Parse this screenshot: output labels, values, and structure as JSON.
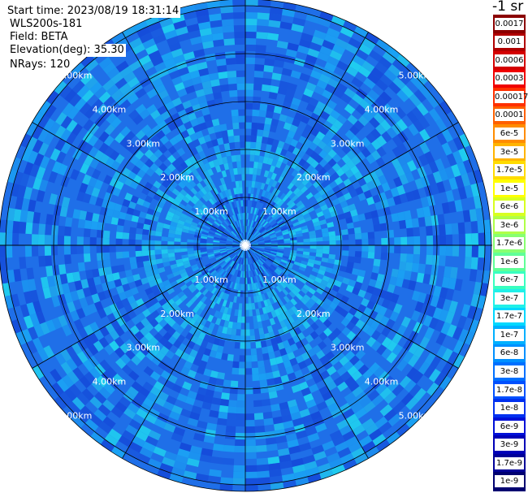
{
  "header": {
    "start_time": "Start time: 2023/08/19 18:31:14",
    "instrument": "WLS200s-181",
    "field": "Field: BETA",
    "elevation": "Elevation(deg): 35.30",
    "nrays": "NRays: 120"
  },
  "range_ring_labels": [
    "1.00km",
    "2.00km",
    "3.00km",
    "4.00km",
    "5.00km"
  ],
  "colorbar": {
    "unit": "-1 sr",
    "levels": [
      {
        "label": "0.0017",
        "color": "#8b0000"
      },
      {
        "label": "0.001",
        "color": "#b00000"
      },
      {
        "label": "0.0006",
        "color": "#d40000"
      },
      {
        "label": "0.0003",
        "color": "#f00000"
      },
      {
        "label": "0.00017",
        "color": "#ff3000"
      },
      {
        "label": "0.0001",
        "color": "#ff6000"
      },
      {
        "label": "6e-5",
        "color": "#ff8c00"
      },
      {
        "label": "3e-5",
        "color": "#ffb400"
      },
      {
        "label": "1.7e-5",
        "color": "#ffdc00"
      },
      {
        "label": "1e-5",
        "color": "#ffff00"
      },
      {
        "label": "6e-6",
        "color": "#d8ff20"
      },
      {
        "label": "3e-6",
        "color": "#b0ff48"
      },
      {
        "label": "1.7e-6",
        "color": "#88ff70"
      },
      {
        "label": "1e-6",
        "color": "#60ff98"
      },
      {
        "label": "6e-7",
        "color": "#38ffc0"
      },
      {
        "label": "3e-7",
        "color": "#20f0e8"
      },
      {
        "label": "1.7e-7",
        "color": "#00d8ff"
      },
      {
        "label": "1e-7",
        "color": "#00b0ff"
      },
      {
        "label": "6e-8",
        "color": "#0090ff"
      },
      {
        "label": "3e-8",
        "color": "#0070ff"
      },
      {
        "label": "1.7e-8",
        "color": "#0050ff"
      },
      {
        "label": "1e-8",
        "color": "#0030f0"
      },
      {
        "label": "6e-9",
        "color": "#0010d8"
      },
      {
        "label": "3e-9",
        "color": "#0000b8"
      },
      {
        "label": "1.7e-9",
        "color": "#000098"
      },
      {
        "label": "1e-9",
        "color": "#000070"
      }
    ]
  },
  "colors": {
    "dominant_field": "#1f6fe8",
    "field_light": "#1aa8f5",
    "field_cyan": "#20d8f0",
    "field_dark": "#1448d8",
    "grid_lines": "#000000"
  }
}
